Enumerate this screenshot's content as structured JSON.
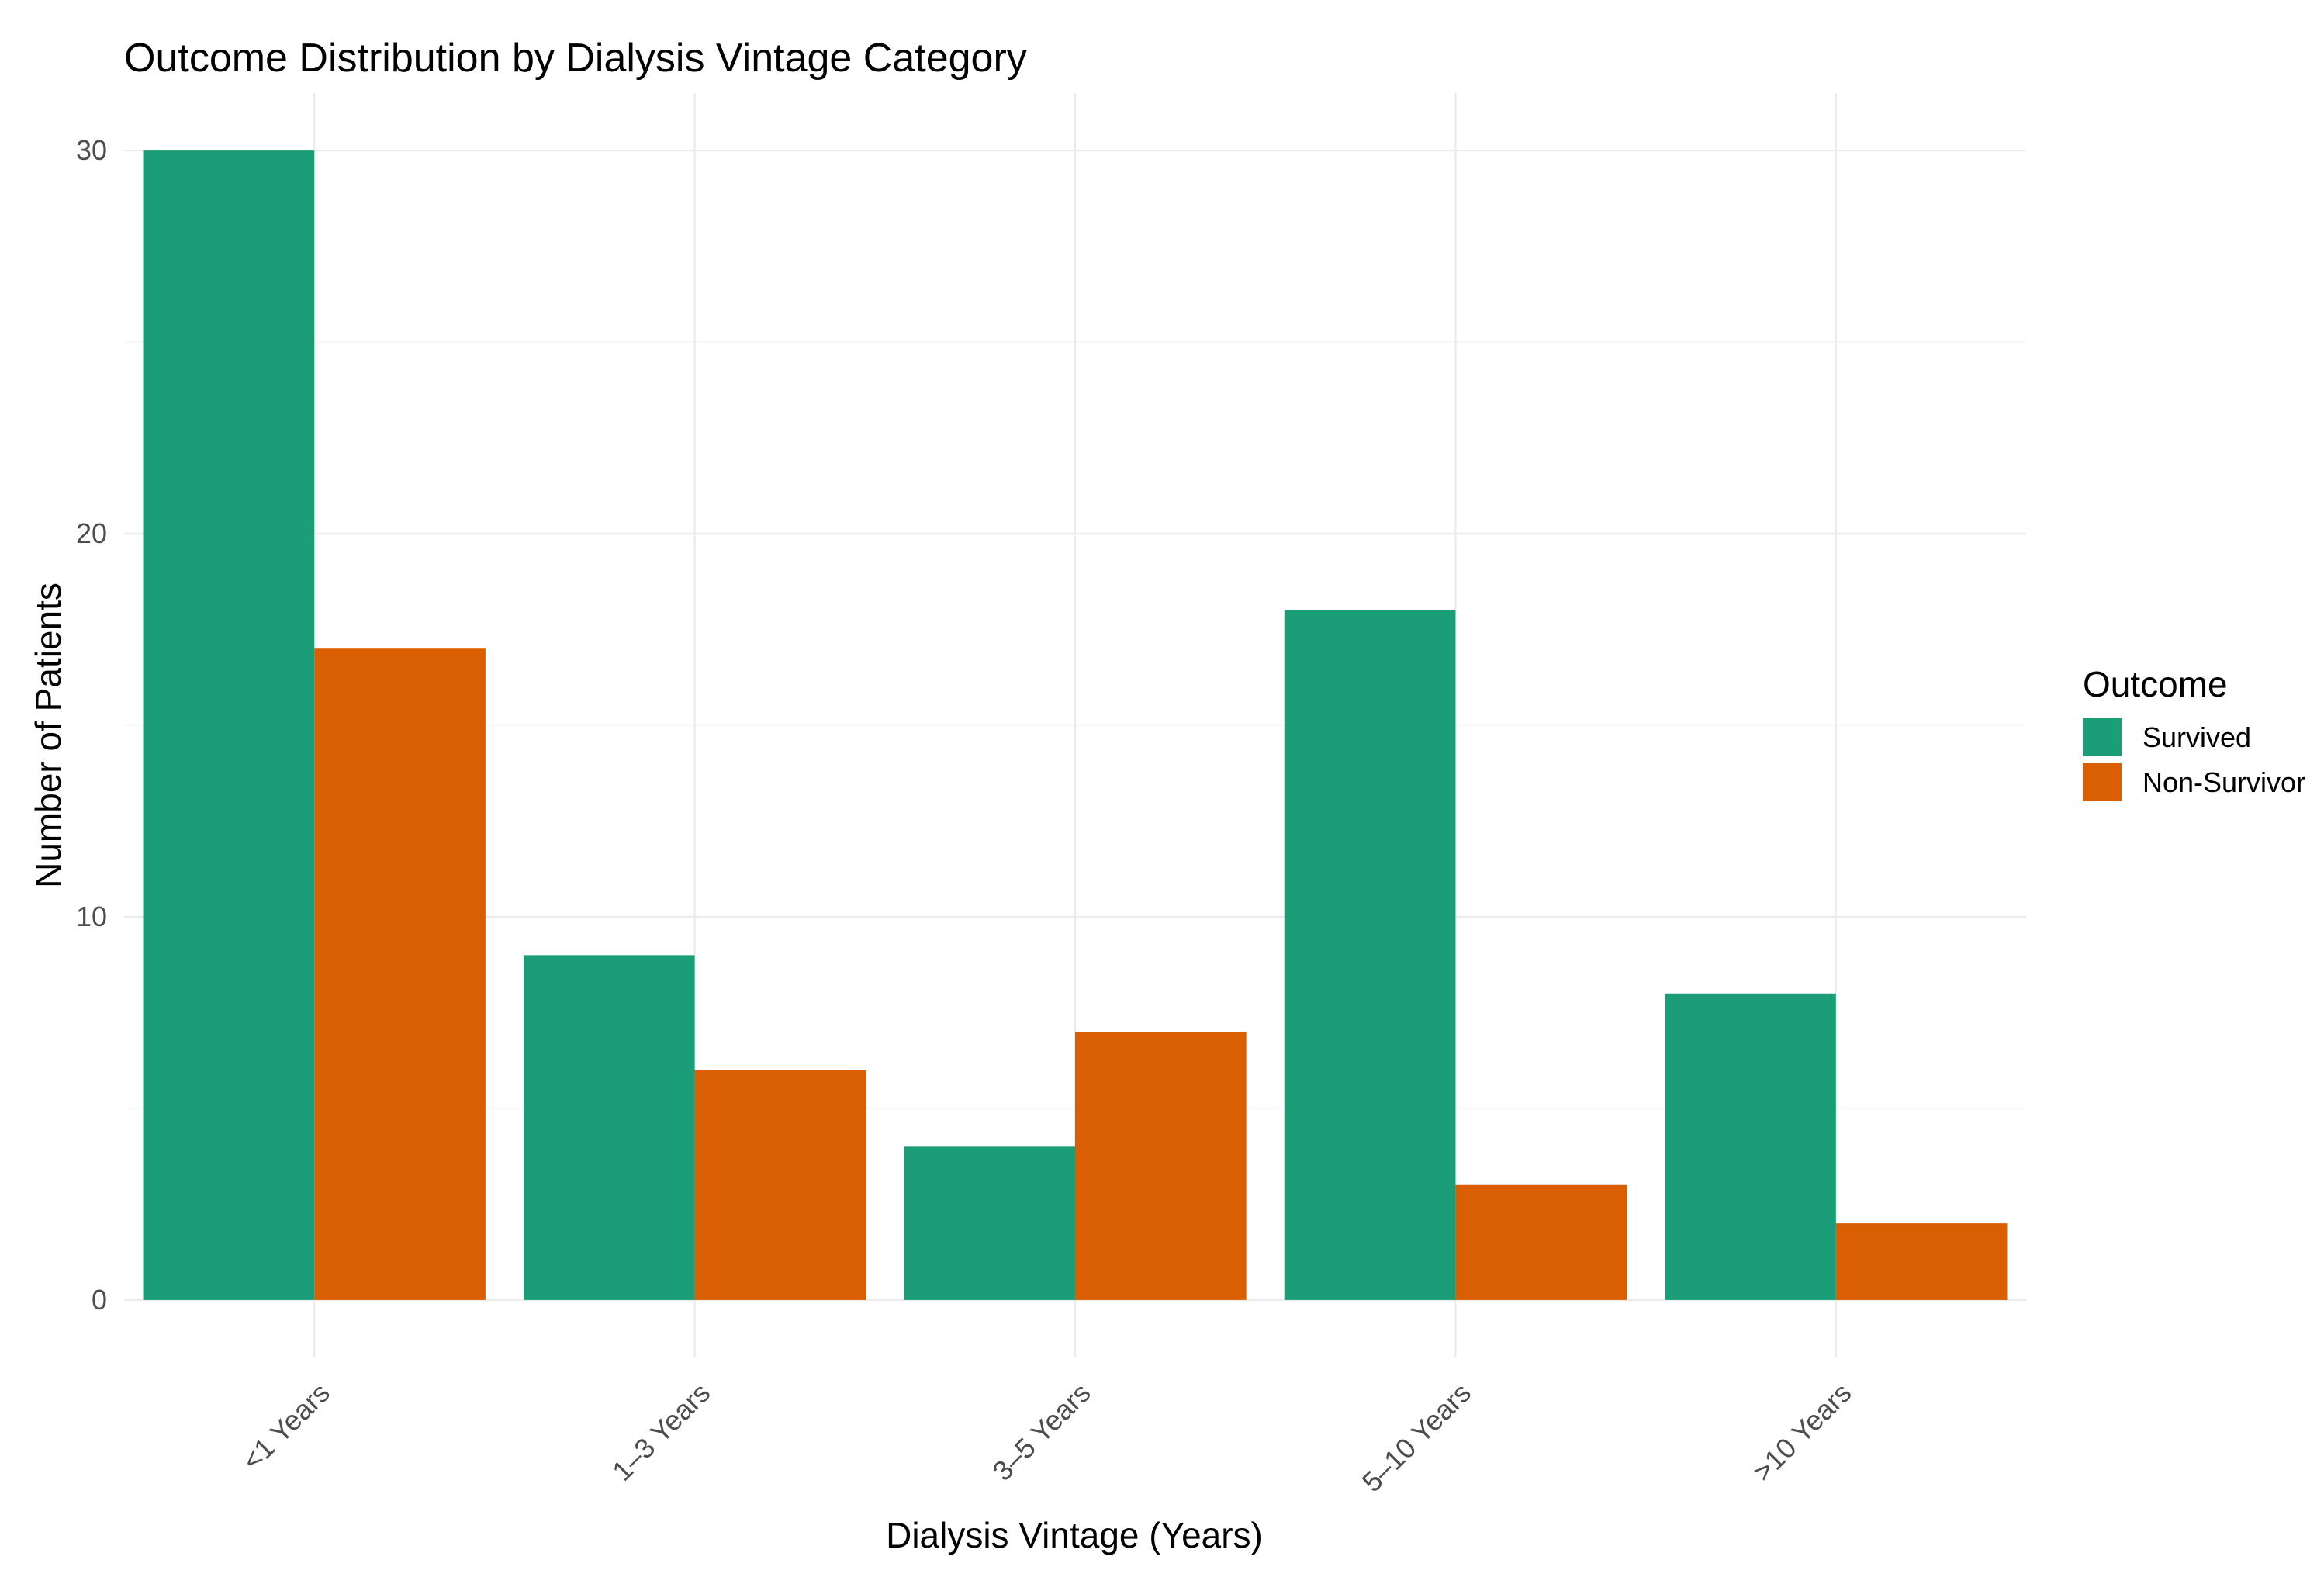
{
  "chart_data": {
    "type": "bar",
    "title": "Outcome Distribution by Dialysis Vintage Category",
    "xlabel": "Dialysis Vintage (Years)",
    "ylabel": "Number of Patients",
    "categories": [
      "<1 Years",
      "1–3 Years",
      "3–5 Years",
      "5–10 Years",
      ">10 Years"
    ],
    "series": [
      {
        "name": "Survived",
        "color": "#1b9e77",
        "values": [
          30,
          9,
          4,
          18,
          8
        ]
      },
      {
        "name": "Non-Survivor",
        "color": "#d95f02",
        "values": [
          17,
          6,
          7,
          3,
          2
        ]
      }
    ],
    "ylim": [
      -1.5,
      31.5
    ],
    "yticks": [
      0,
      10,
      20,
      30
    ],
    "yminor": [
      5,
      15,
      25
    ],
    "grid": true,
    "legend": {
      "title": "Outcome",
      "position": "right"
    }
  }
}
